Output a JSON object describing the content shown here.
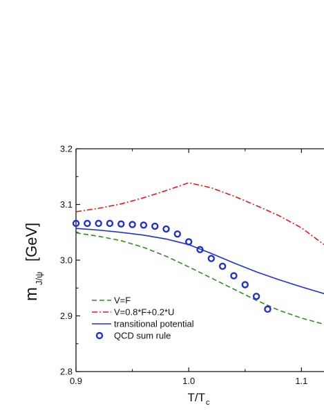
{
  "chart_data": {
    "type": "line",
    "title": "",
    "xlabel": "T/T",
    "xlabel_sub": "c",
    "ylabel": "m",
    "ylabel_sub": "J/ψ",
    "ylabel_unit": "[GeV]",
    "xlim": [
      0.9,
      1.12
    ],
    "ylim": [
      2.8,
      3.2
    ],
    "grid": false,
    "legend_position": "bottom-left",
    "x_ticks": [
      {
        "value": 0.9,
        "label": "0.9"
      },
      {
        "value": 1.0,
        "label": "1.0"
      },
      {
        "value": 1.1,
        "label": "1.1"
      }
    ],
    "y_ticks": [
      {
        "value": 2.8,
        "label": "2.8"
      },
      {
        "value": 2.9,
        "label": "2.9"
      },
      {
        "value": 3.0,
        "label": "3.0"
      },
      {
        "value": 3.1,
        "label": "3.1"
      },
      {
        "value": 3.2,
        "label": "3.2"
      }
    ],
    "series": [
      {
        "name": "V=F",
        "style": "dashed",
        "color": "#2e8b1e",
        "x": [
          0.9,
          0.92,
          0.94,
          0.96,
          0.98,
          1.0,
          1.02,
          1.04,
          1.06,
          1.08,
          1.1,
          1.12
        ],
        "y": [
          3.049,
          3.043,
          3.035,
          3.023,
          3.007,
          2.988,
          2.968,
          2.948,
          2.928,
          2.91,
          2.896,
          2.885
        ]
      },
      {
        "name": "V=0.8*F+0.2*U",
        "style": "dashdot",
        "color": "#e8161b",
        "x": [
          0.9,
          0.92,
          0.94,
          0.96,
          0.98,
          1.0,
          1.02,
          1.04,
          1.06,
          1.08,
          1.1,
          1.12
        ],
        "y": [
          3.087,
          3.093,
          3.101,
          3.112,
          3.125,
          3.139,
          3.13,
          3.115,
          3.098,
          3.08,
          3.058,
          3.028
        ]
      },
      {
        "name": "transitional potential",
        "style": "solid",
        "color": "#1f2fd6",
        "x": [
          0.9,
          0.92,
          0.94,
          0.96,
          0.98,
          1.0,
          1.02,
          1.04,
          1.06,
          1.08,
          1.1,
          1.12
        ],
        "y": [
          3.057,
          3.054,
          3.05,
          3.045,
          3.038,
          3.028,
          3.012,
          2.995,
          2.979,
          2.965,
          2.952,
          2.94
        ]
      },
      {
        "name": "QCD sum rule",
        "style": "markers",
        "color": "#1f2fd6",
        "x": [
          0.9,
          0.91,
          0.92,
          0.93,
          0.94,
          0.95,
          0.96,
          0.97,
          0.98,
          0.99,
          1.0,
          1.01,
          1.02,
          1.03,
          1.04,
          1.05,
          1.06,
          1.07
        ],
        "y": [
          3.066,
          3.066,
          3.066,
          3.066,
          3.065,
          3.064,
          3.063,
          3.061,
          3.056,
          3.047,
          3.033,
          3.019,
          3.003,
          2.989,
          2.972,
          2.956,
          2.935,
          2.912
        ]
      }
    ]
  }
}
